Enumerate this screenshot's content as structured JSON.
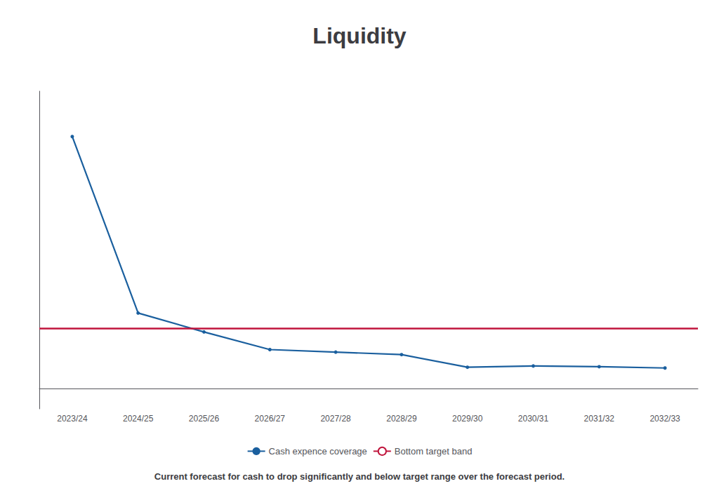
{
  "chart_data": {
    "type": "line",
    "title": "Liquidity",
    "subtitle": "Current forecast for cash to drop significantly and below target range over the forecast period.",
    "categories": [
      "2023/24",
      "2024/25",
      "2025/26",
      "2026/27",
      "2027/28",
      "2028/29",
      "2029/30",
      "2030/31",
      "2031/32",
      "2032/33"
    ],
    "series": [
      {
        "name": "Cash expence coverage",
        "color": "#1a5f9e",
        "values": [
          1.0,
          0.3,
          0.225,
          0.155,
          0.145,
          0.135,
          0.085,
          0.09,
          0.087,
          0.082
        ]
      },
      {
        "name": "Bottom target band",
        "color": "#c0143c",
        "type": "hline",
        "value": 0.245
      }
    ],
    "ylim": [
      -0.08,
      1.18
    ],
    "tick_labels": "x",
    "grid": false,
    "legend": "bottom"
  }
}
